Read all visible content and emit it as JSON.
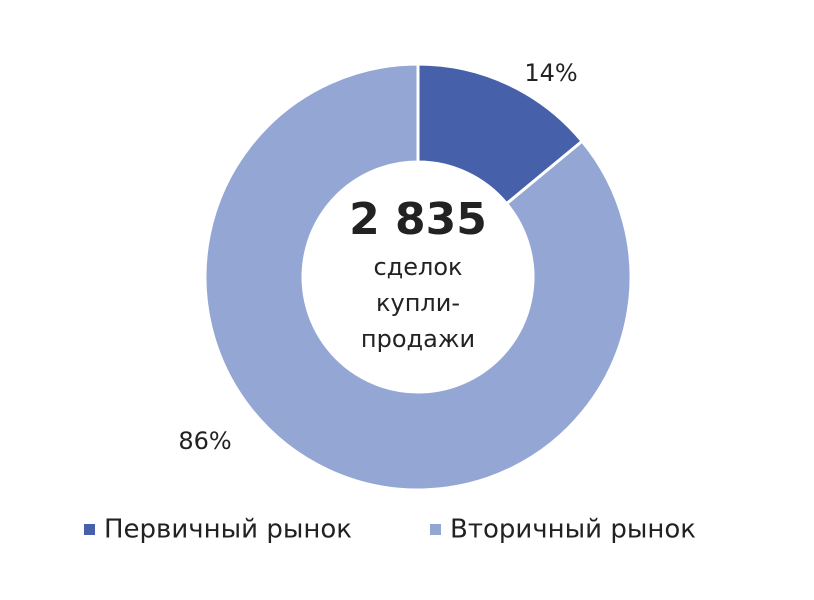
{
  "chart_data": {
    "type": "donut",
    "categories": [
      "Первичный рынок",
      "Вторичный рынок"
    ],
    "values": [
      14,
      86
    ],
    "value_labels": [
      "14%",
      "86%"
    ],
    "colors": [
      "#4661a9",
      "#94a6d4"
    ],
    "center_title": "2 835",
    "center_lines": [
      "сделок",
      "купли-",
      "продажи"
    ],
    "legend": "bottom"
  }
}
